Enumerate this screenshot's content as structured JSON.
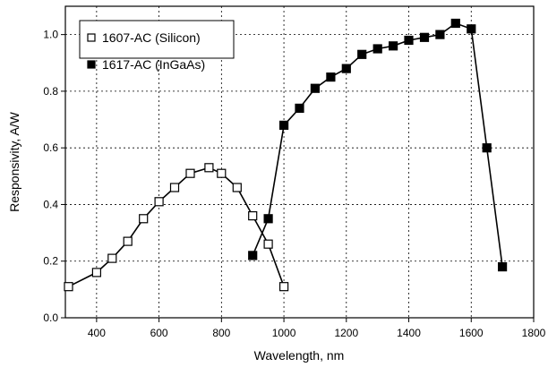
{
  "chart_data": {
    "type": "line",
    "title": "",
    "xlabel": "Wavelength, nm",
    "ylabel": "Responsivity, A/W",
    "xlim": [
      300,
      1800
    ],
    "ylim": [
      0.0,
      1.1
    ],
    "x_ticks": [
      400,
      600,
      800,
      1000,
      1200,
      1400,
      1600,
      1800
    ],
    "y_ticks": [
      0.0,
      0.2,
      0.4,
      0.6,
      0.8,
      1.0
    ],
    "x_tick_labels": [
      "400",
      "600",
      "800",
      "1000",
      "1200",
      "1400",
      "1600",
      "1800"
    ],
    "y_tick_labels": [
      "0.0",
      "0.2",
      "0.4",
      "0.6",
      "0.8",
      "1.0"
    ],
    "grid": true,
    "legend_position": "top-left",
    "series": [
      {
        "name": "1607-AC (Silicon)",
        "marker": "open-square",
        "color": "#000000",
        "x": [
          310,
          400,
          450,
          500,
          550,
          600,
          650,
          700,
          760,
          800,
          850,
          900,
          950,
          1000
        ],
        "y": [
          0.11,
          0.16,
          0.21,
          0.27,
          0.35,
          0.41,
          0.46,
          0.51,
          0.53,
          0.51,
          0.46,
          0.36,
          0.26,
          0.11
        ]
      },
      {
        "name": "1617-AC (InGaAs)",
        "marker": "filled-square",
        "color": "#000000",
        "x": [
          900,
          950,
          1000,
          1050,
          1100,
          1150,
          1200,
          1250,
          1300,
          1350,
          1400,
          1450,
          1500,
          1550,
          1600,
          1650,
          1700
        ],
        "y": [
          0.22,
          0.35,
          0.68,
          0.74,
          0.81,
          0.85,
          0.88,
          0.93,
          0.95,
          0.96,
          0.98,
          0.99,
          1.0,
          1.04,
          1.02,
          0.6,
          0.18
        ]
      }
    ]
  }
}
